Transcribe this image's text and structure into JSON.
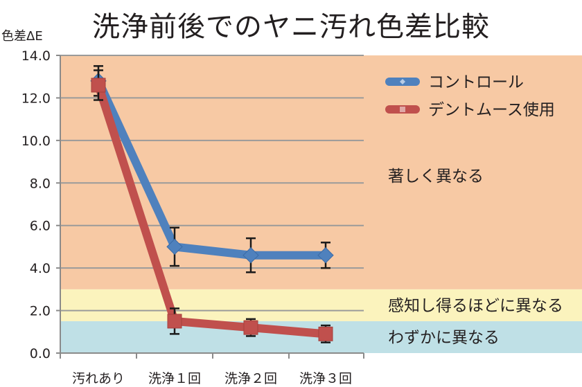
{
  "chart_data": {
    "type": "line",
    "title": "洗浄前後でのヤニ汚れ色差比較",
    "ylabel": "色差ΔE",
    "xlabel": "",
    "ylim": [
      0,
      14
    ],
    "yticks": [
      "0.0",
      "2.0",
      "4.0",
      "6.0",
      "8.0",
      "10.0",
      "12.0",
      "14.0"
    ],
    "categories": [
      "汚れあり",
      "洗浄１回",
      "洗浄２回",
      "洗浄３回"
    ],
    "grid": true,
    "legend_position": "top-right",
    "bands": [
      {
        "label": "わずかに異なる",
        "from": 0,
        "to": 1.5,
        "color": "#bfe0e6"
      },
      {
        "label": "感知し得るほどに異なる",
        "from": 1.5,
        "to": 3.0,
        "color": "#fbf3bd"
      },
      {
        "label": "著しく異なる",
        "from": 3.0,
        "to": 14,
        "color": "#f7c9a4"
      }
    ],
    "series": [
      {
        "name": "コントロール",
        "values": [
          12.8,
          5.0,
          4.6,
          4.6
        ],
        "errors": [
          0.7,
          0.9,
          0.8,
          0.6
        ],
        "color": "#4f81bd",
        "marker": "diamond"
      },
      {
        "name": "デントムース使用",
        "values": [
          12.6,
          1.5,
          1.2,
          0.9
        ],
        "errors": [
          0.7,
          0.6,
          0.4,
          0.4
        ],
        "color": "#c0504d",
        "marker": "square"
      }
    ]
  }
}
